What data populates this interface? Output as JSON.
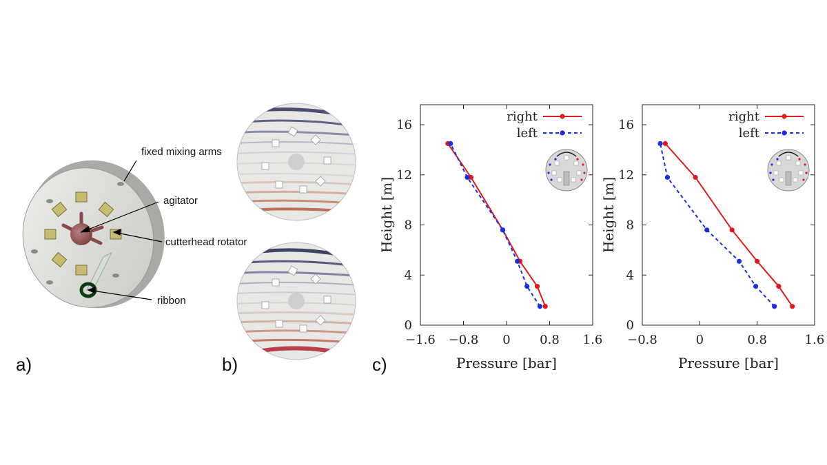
{
  "panels": {
    "a": {
      "label": "a)",
      "annotations": {
        "fixed_mixing_arms": "fixed mixing arms",
        "agitator": "agitator",
        "cutterhead_rotator": "cutterhead rotator",
        "ribbon": "ribbon"
      }
    },
    "b": {
      "label": "b)"
    },
    "c": {
      "label": "c)"
    }
  },
  "colors": {
    "right": "#e01b1b",
    "left": "#1a2fe0"
  },
  "chart_data": [
    {
      "type": "line",
      "xlabel": "Pressure [bar]",
      "ylabel": "Height [m]",
      "xlim": [
        -1.6,
        1.6
      ],
      "ylim": [
        0,
        17.6
      ],
      "xticks": [
        "−1.6",
        "−0.8",
        "0",
        "0.8",
        "1.6"
      ],
      "xtick_values": [
        -1.6,
        -0.8,
        0,
        0.8,
        1.6
      ],
      "yticks": [
        "0",
        "4",
        "8",
        "12",
        "16"
      ],
      "ytick_values": [
        0,
        4,
        8,
        12,
        16
      ],
      "legend_position": "top-right",
      "series": [
        {
          "name": "right",
          "style": "solid",
          "color": "#e01b1b",
          "x": [
            0.72,
            0.57,
            0.25,
            -0.07,
            -0.66,
            -1.09
          ],
          "y": [
            1.5,
            3.1,
            5.1,
            7.6,
            11.8,
            14.5
          ]
        },
        {
          "name": "left",
          "style": "dashed",
          "color": "#1a2fe0",
          "x": [
            0.62,
            0.38,
            0.2,
            -0.07,
            -0.73,
            -1.04
          ],
          "y": [
            1.5,
            3.1,
            5.1,
            7.6,
            11.8,
            14.5
          ]
        }
      ]
    },
    {
      "type": "line",
      "xlabel": "Pressure [bar]",
      "ylabel": "Height [m]",
      "xlim": [
        -0.8,
        1.6
      ],
      "ylim": [
        0,
        17.6
      ],
      "xticks": [
        "−0.8",
        "0",
        "0.8",
        "1.6"
      ],
      "xtick_values": [
        -0.8,
        0,
        0.8,
        1.6
      ],
      "yticks": [
        "0",
        "4",
        "8",
        "12",
        "16"
      ],
      "ytick_values": [
        0,
        4,
        8,
        12,
        16
      ],
      "legend_position": "top-right",
      "series": [
        {
          "name": "right",
          "style": "solid",
          "color": "#e01b1b",
          "x": [
            1.29,
            1.1,
            0.8,
            0.45,
            -0.06,
            -0.48
          ],
          "y": [
            1.5,
            3.1,
            5.1,
            7.6,
            11.8,
            14.5
          ]
        },
        {
          "name": "left",
          "style": "dashed",
          "color": "#1a2fe0",
          "x": [
            1.04,
            0.78,
            0.55,
            0.1,
            -0.45,
            -0.55
          ],
          "y": [
            1.5,
            3.1,
            5.1,
            7.6,
            11.8,
            14.5
          ]
        }
      ]
    }
  ]
}
